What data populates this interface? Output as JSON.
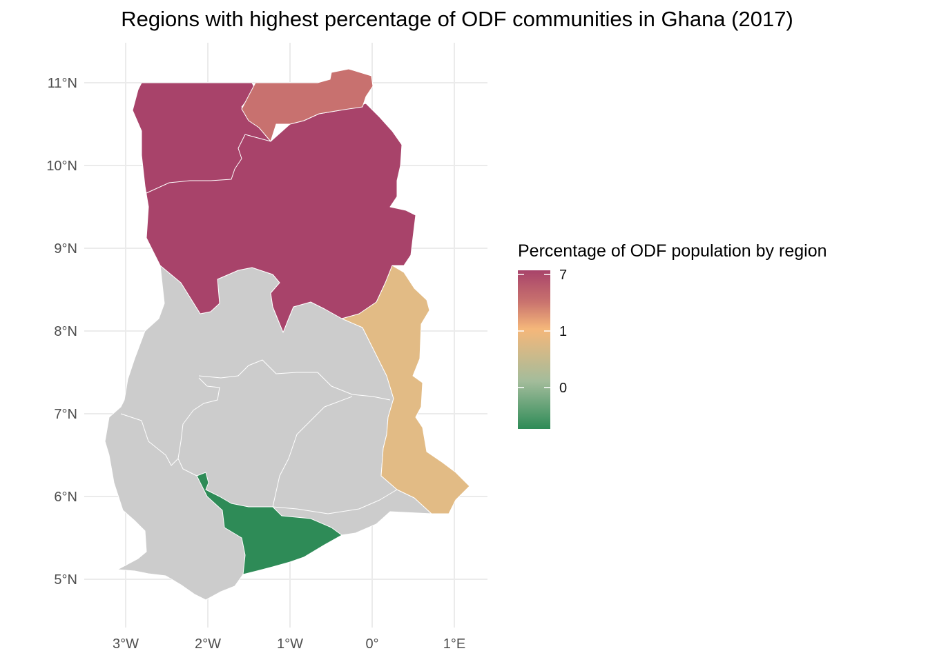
{
  "title": "Regions with highest percentage of ODF communities in Ghana (2017)",
  "axes": {
    "x_ticks": [
      "3°W",
      "2°W",
      "1°W",
      "0°",
      "1°E"
    ],
    "y_ticks": [
      "5°N",
      "6°N",
      "7°N",
      "8°N",
      "9°N",
      "10°N",
      "11°N"
    ]
  },
  "legend": {
    "title": "Percentage of ODF population by region",
    "labels": [
      "7",
      "1",
      "0"
    ],
    "colors": [
      "#a8436a",
      "#c9736e",
      "#f5b77a",
      "#a3bc9b",
      "#2e8b57"
    ]
  },
  "colors": {
    "high": "#a8436a",
    "upper_east": "#c8716f",
    "volta": "#e2bb85",
    "central": "#2e8b57",
    "no_data": "#cccccc",
    "grid": "#ebebeb",
    "border": "#ffffff"
  }
}
